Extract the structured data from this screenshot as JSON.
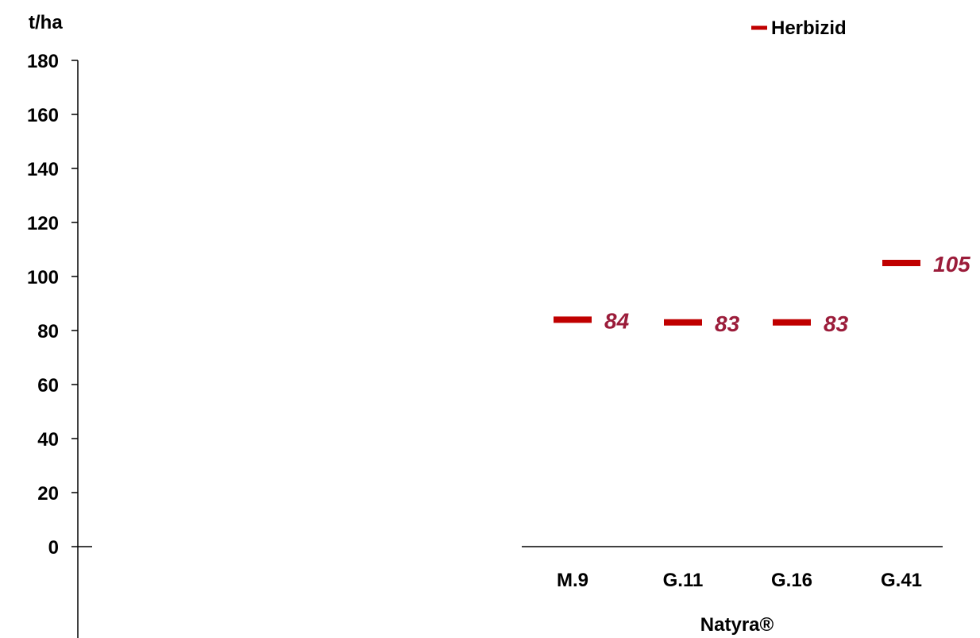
{
  "chart_data": {
    "type": "scatter",
    "ylabel": "t/ha",
    "ylim": [
      0,
      180
    ],
    "yticks": [
      0,
      20,
      40,
      60,
      80,
      100,
      120,
      140,
      160,
      180
    ],
    "xgroup_label": "Natyra®",
    "categories": [
      "M.9",
      "G.11",
      "G.16",
      "G.41"
    ],
    "series": [
      {
        "name": "Herbizid",
        "color": "#c00000",
        "values": [
          84,
          83,
          83,
          105
        ],
        "labels": [
          "84",
          "83",
          "83",
          "105"
        ]
      }
    ],
    "data_label_color": "#9b1c3a",
    "legend": "top-right",
    "grid": false
  }
}
